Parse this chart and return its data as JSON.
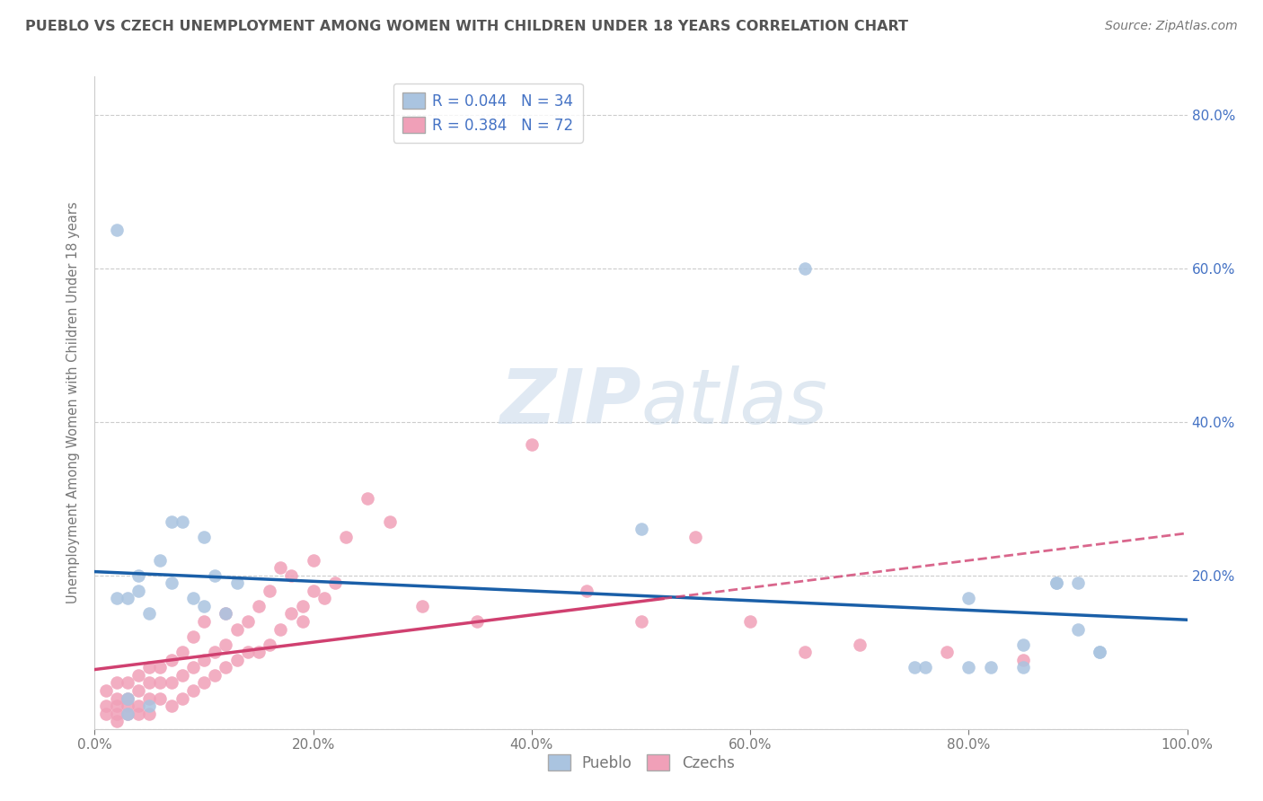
{
  "title": "PUEBLO VS CZECH UNEMPLOYMENT AMONG WOMEN WITH CHILDREN UNDER 18 YEARS CORRELATION CHART",
  "source": "Source: ZipAtlas.com",
  "ylabel": "Unemployment Among Women with Children Under 18 years",
  "pueblo_color": "#aac4e0",
  "czech_color": "#f0a0b8",
  "pueblo_line_color": "#1a5fa8",
  "czech_line_color": "#d04070",
  "pueblo_R": 0.044,
  "pueblo_N": 34,
  "czech_R": 0.384,
  "czech_N": 72,
  "xlim": [
    0.0,
    1.0
  ],
  "ylim": [
    0.0,
    0.85
  ],
  "xticks": [
    0.0,
    0.2,
    0.4,
    0.6,
    0.8,
    1.0
  ],
  "yticks": [
    0.0,
    0.2,
    0.4,
    0.6,
    0.8
  ],
  "xticklabels": [
    "0.0%",
    "20.0%",
    "40.0%",
    "60.0%",
    "80.0%",
    "100.0%"
  ],
  "pueblo_x": [
    0.02,
    0.03,
    0.03,
    0.04,
    0.04,
    0.05,
    0.05,
    0.06,
    0.07,
    0.07,
    0.08,
    0.09,
    0.1,
    0.1,
    0.11,
    0.12,
    0.13,
    0.02,
    0.5,
    0.65,
    0.75,
    0.76,
    0.8,
    0.85,
    0.88,
    0.9,
    0.92,
    0.8,
    0.82,
    0.85,
    0.88,
    0.9,
    0.92,
    0.03
  ],
  "pueblo_y": [
    0.65,
    0.02,
    0.04,
    0.18,
    0.2,
    0.03,
    0.15,
    0.22,
    0.19,
    0.27,
    0.27,
    0.17,
    0.16,
    0.25,
    0.2,
    0.15,
    0.19,
    0.17,
    0.26,
    0.6,
    0.08,
    0.08,
    0.17,
    0.11,
    0.19,
    0.13,
    0.1,
    0.08,
    0.08,
    0.08,
    0.19,
    0.19,
    0.1,
    0.17
  ],
  "czech_x": [
    0.01,
    0.01,
    0.01,
    0.02,
    0.02,
    0.02,
    0.02,
    0.02,
    0.03,
    0.03,
    0.03,
    0.03,
    0.04,
    0.04,
    0.04,
    0.04,
    0.05,
    0.05,
    0.05,
    0.05,
    0.06,
    0.06,
    0.06,
    0.07,
    0.07,
    0.07,
    0.08,
    0.08,
    0.08,
    0.09,
    0.09,
    0.09,
    0.1,
    0.1,
    0.1,
    0.11,
    0.11,
    0.12,
    0.12,
    0.12,
    0.13,
    0.13,
    0.14,
    0.14,
    0.15,
    0.15,
    0.16,
    0.16,
    0.17,
    0.17,
    0.18,
    0.18,
    0.19,
    0.19,
    0.2,
    0.2,
    0.21,
    0.22,
    0.23,
    0.25,
    0.27,
    0.3,
    0.35,
    0.4,
    0.45,
    0.5,
    0.55,
    0.6,
    0.65,
    0.7,
    0.78,
    0.85
  ],
  "czech_y": [
    0.02,
    0.03,
    0.05,
    0.01,
    0.02,
    0.03,
    0.04,
    0.06,
    0.02,
    0.03,
    0.04,
    0.06,
    0.02,
    0.03,
    0.05,
    0.07,
    0.02,
    0.04,
    0.06,
    0.08,
    0.04,
    0.06,
    0.08,
    0.03,
    0.06,
    0.09,
    0.04,
    0.07,
    0.1,
    0.05,
    0.08,
    0.12,
    0.06,
    0.09,
    0.14,
    0.07,
    0.1,
    0.08,
    0.11,
    0.15,
    0.09,
    0.13,
    0.1,
    0.14,
    0.1,
    0.16,
    0.11,
    0.18,
    0.13,
    0.21,
    0.15,
    0.2,
    0.16,
    0.14,
    0.18,
    0.22,
    0.17,
    0.19,
    0.25,
    0.3,
    0.27,
    0.16,
    0.14,
    0.37,
    0.18,
    0.14,
    0.25,
    0.14,
    0.1,
    0.11,
    0.1,
    0.09
  ],
  "watermark_zip": "ZIP",
  "watermark_atlas": "atlas",
  "background_color": "#ffffff",
  "grid_color": "#cccccc",
  "title_color": "#555555",
  "axis_label_color": "#777777",
  "tick_color": "#777777",
  "right_ytick_color": "#4472c4",
  "legend_text_color": "#4472c4"
}
